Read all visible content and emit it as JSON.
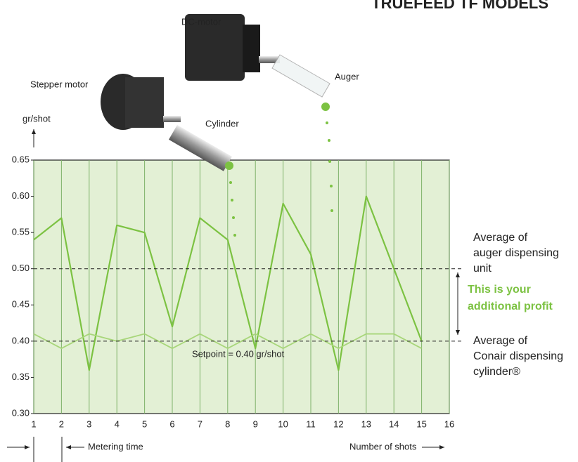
{
  "chart_data": {
    "type": "line",
    "title": "TRUEFEED TF MODELS",
    "y_label": "gr/shot",
    "x_label": "Number of shots",
    "metering_label": "Metering time",
    "x": [
      1,
      2,
      3,
      4,
      5,
      6,
      7,
      8,
      9,
      10,
      11,
      12,
      13,
      14,
      15
    ],
    "series": [
      {
        "name": "Auger",
        "color": "#7cc242",
        "values": [
          0.54,
          0.57,
          0.36,
          0.56,
          0.55,
          0.42,
          0.57,
          0.54,
          0.39,
          0.59,
          0.52,
          0.36,
          0.6,
          0.5,
          0.4
        ]
      },
      {
        "name": "Cylinder",
        "color": "#a8d67a",
        "values": [
          0.41,
          0.39,
          0.41,
          0.4,
          0.41,
          0.39,
          0.41,
          0.39,
          0.41,
          0.39,
          0.41,
          0.39,
          0.41,
          0.41,
          0.39
        ]
      }
    ],
    "xlim": [
      1,
      16
    ],
    "xticks": [
      1,
      2,
      3,
      4,
      5,
      6,
      7,
      8,
      9,
      10,
      11,
      12,
      13,
      14,
      15,
      16
    ],
    "ylim": [
      0.3,
      0.65
    ],
    "yticks": [
      {
        "value": 0.3,
        "label": "0.30"
      },
      0.35,
      {
        "value": 0.4,
        "label": "0.40"
      },
      0.45,
      {
        "value": 0.5,
        "label": "0.50"
      },
      0.55,
      {
        "value": 0.6,
        "label": "0.60"
      },
      0.65
    ],
    "grid": true,
    "reference_lines": [
      {
        "value": 0.5,
        "label": [
          "Average of",
          "auger dispensing",
          "unit"
        ]
      },
      {
        "value": 0.4,
        "label": [
          "Average of",
          "Conair dispensing",
          "cylinder®"
        ]
      }
    ],
    "setpoint_label": "Setpoint = 0.40 gr/shot",
    "profit_label": [
      "This is your",
      "additional profit"
    ],
    "illustration_labels": {
      "dc_motor": "DC-motor",
      "auger": "Auger",
      "stepper_motor": "Stepper motor",
      "cylinder": "Cylinder"
    }
  }
}
